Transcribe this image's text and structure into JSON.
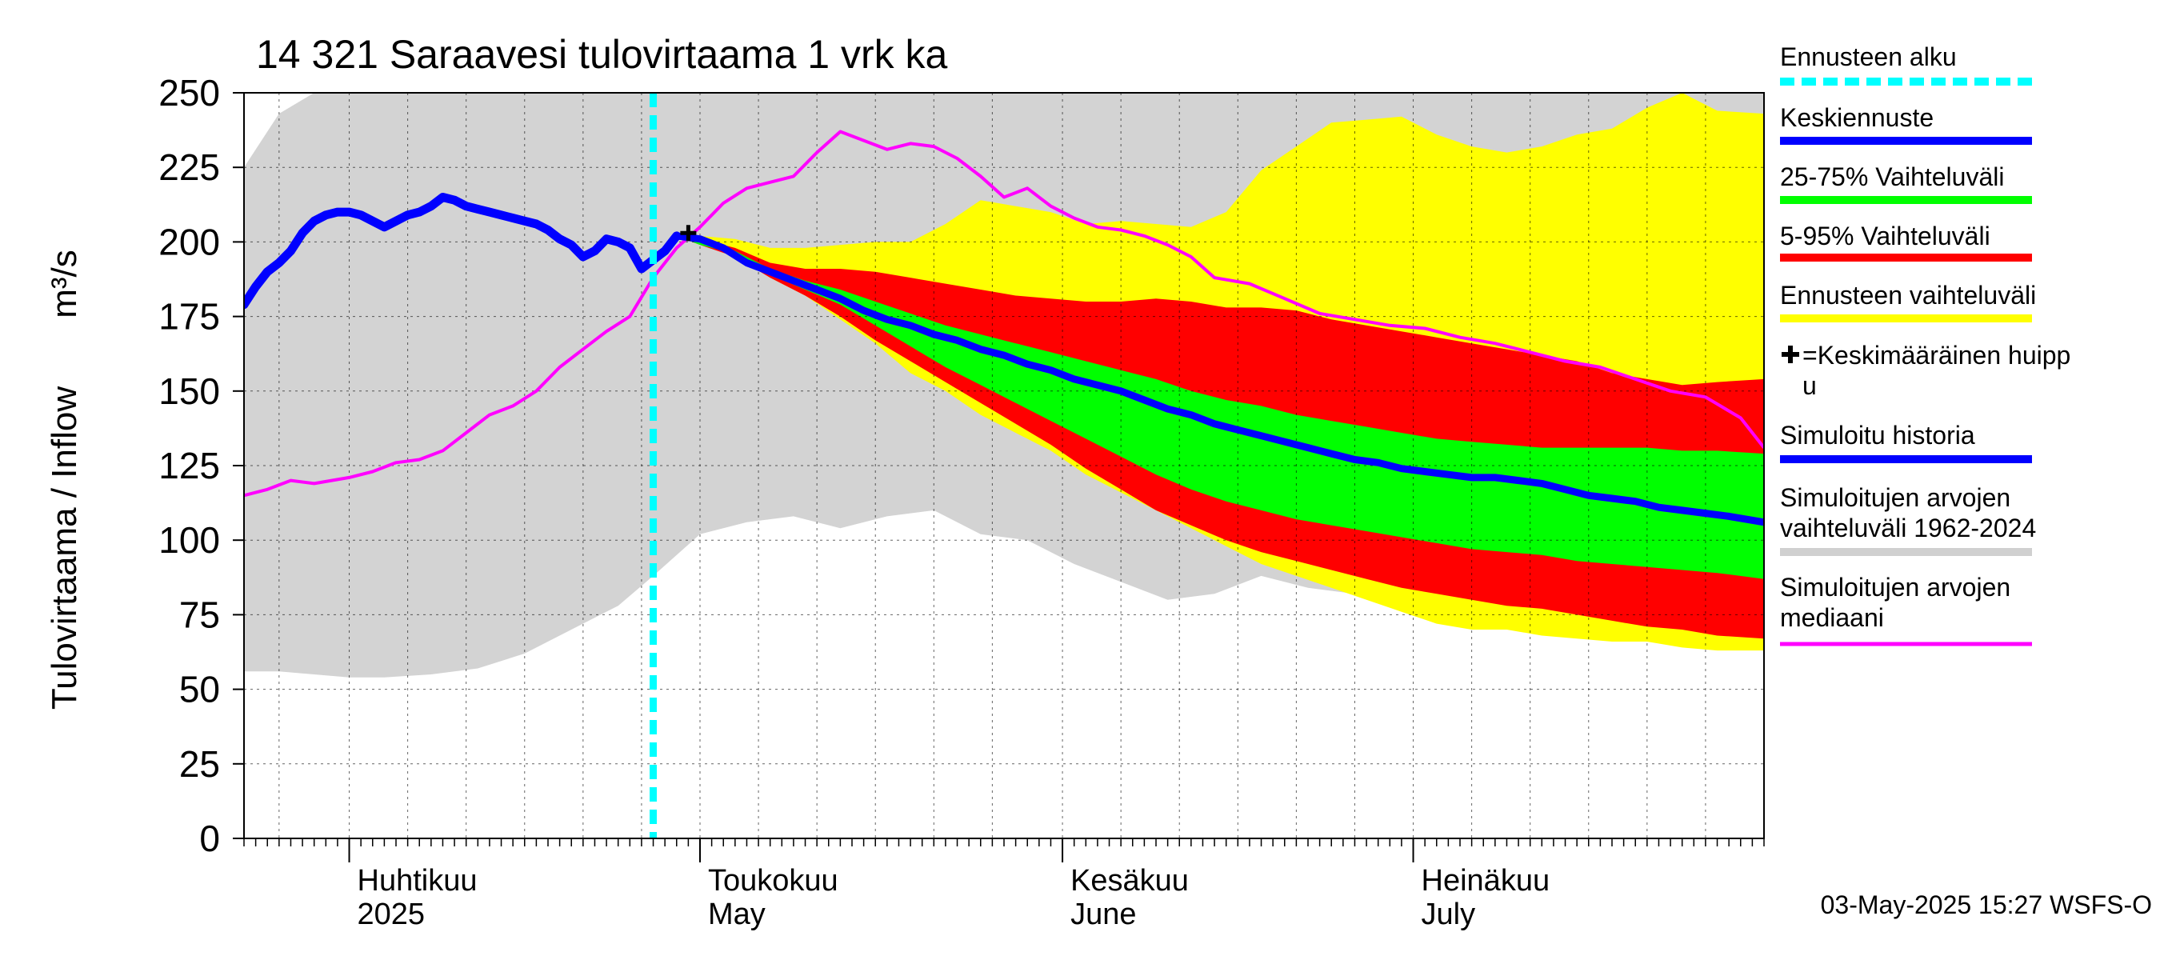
{
  "chart_data": {
    "type": "area",
    "title": "14 321 Saraavesi tulovirtaama 1 vrk ka",
    "ylabel_main": "Tulovirtaama / Inflow",
    "ylabel_unit": "m³/s",
    "ylim": [
      0,
      250
    ],
    "yticks": [
      "0",
      "25",
      "50",
      "75",
      "100",
      "125",
      "150",
      "175",
      "200",
      "225",
      "250"
    ],
    "x_start": "2025-03-23",
    "x_end": "2025-07-31",
    "forecast_start": "2025-04-27",
    "grid": true,
    "months": [
      {
        "fi": "Huhtikuu",
        "en": "2025",
        "date": "2025-04-01"
      },
      {
        "fi": "Toukokuu",
        "en": "May",
        "date": "2025-05-01"
      },
      {
        "fi": "Kesäkuu",
        "en": "June",
        "date": "2025-06-01"
      },
      {
        "fi": "Heinäkuu",
        "en": "July",
        "date": "2025-07-01"
      }
    ],
    "footer": "03-May-2025 15:27 WSFS-O",
    "legend": [
      {
        "label": "Ennusteen alku",
        "color": "#00ffff",
        "style": "dashed"
      },
      {
        "label": "Keskiennuste",
        "color": "#0000ff",
        "style": "solid"
      },
      {
        "label": "25-75% Vaihteluväli",
        "color": "#00ff00",
        "style": "solid"
      },
      {
        "label": "5-95% Vaihteluväli",
        "color": "#ff0000",
        "style": "solid"
      },
      {
        "label": "Ennusteen vaihteluväli",
        "color": "#ffff00",
        "style": "solid"
      },
      {
        "label": "✚=Keskimääräinen huipp u",
        "color": "#000000",
        "style": "marker",
        "lines": [
          "✚=Keskimääräinen huipp",
          "u"
        ]
      },
      {
        "label": "Simuloitu historia",
        "color": "#0000ff",
        "style": "solid"
      },
      {
        "label": "Simuloitujen arvojen vaihteluväli 1962-2024",
        "color": "#d0d0d0",
        "style": "solid",
        "lines": [
          "Simuloitujen arvojen",
          "vaihteluväli 1962-2024"
        ]
      },
      {
        "label": "Simuloitujen arvojen mediaani",
        "color": "#ff00ff",
        "style": "solid",
        "lines": [
          "Simuloitujen arvojen",
          "mediaani"
        ]
      }
    ],
    "series": {
      "hist_range": {
        "x": [
          "2025-03-23",
          "2025-03-26",
          "2025-03-29",
          "2025-04-01",
          "2025-04-04",
          "2025-04-08",
          "2025-04-12",
          "2025-04-16",
          "2025-04-20",
          "2025-04-24",
          "2025-04-27",
          "2025-05-01",
          "2025-05-05",
          "2025-05-09",
          "2025-05-13",
          "2025-05-17",
          "2025-05-21",
          "2025-05-25",
          "2025-05-29",
          "2025-06-02",
          "2025-06-06",
          "2025-06-10",
          "2025-06-14",
          "2025-06-18",
          "2025-06-22",
          "2025-06-26",
          "2025-06-30",
          "2025-07-04",
          "2025-07-08",
          "2025-07-12",
          "2025-07-16",
          "2025-07-20",
          "2025-07-24",
          "2025-07-28",
          "2025-07-31"
        ],
        "upper": [
          225,
          243,
          250,
          250,
          250,
          250,
          250,
          250,
          250,
          250,
          250,
          250,
          250,
          250,
          250,
          250,
          250,
          250,
          250,
          250,
          250,
          250,
          250,
          250,
          250,
          250,
          250,
          250,
          250,
          250,
          250,
          250,
          250,
          250,
          250
        ],
        "lower": [
          56,
          56,
          55,
          54,
          54,
          55,
          57,
          62,
          70,
          78,
          88,
          102,
          106,
          108,
          104,
          108,
          110,
          102,
          100,
          92,
          86,
          80,
          82,
          88,
          84,
          82,
          80,
          76,
          77,
          74,
          73,
          71,
          70,
          70,
          69
        ]
      },
      "forecast_range": {
        "x": [
          "2025-04-29",
          "2025-05-01",
          "2025-05-04",
          "2025-05-07",
          "2025-05-10",
          "2025-05-13",
          "2025-05-16",
          "2025-05-19",
          "2025-05-22",
          "2025-05-25",
          "2025-05-28",
          "2025-05-31",
          "2025-06-03",
          "2025-06-06",
          "2025-06-09",
          "2025-06-12",
          "2025-06-15",
          "2025-06-18",
          "2025-06-21",
          "2025-06-24",
          "2025-06-27",
          "2025-06-30",
          "2025-07-03",
          "2025-07-06",
          "2025-07-09",
          "2025-07-12",
          "2025-07-15",
          "2025-07-18",
          "2025-07-21",
          "2025-07-24",
          "2025-07-27",
          "2025-07-31"
        ],
        "upper": [
          202,
          202,
          201,
          198,
          198,
          199,
          200,
          200,
          206,
          214,
          212,
          210,
          206,
          207,
          206,
          205,
          210,
          224,
          232,
          240,
          241,
          242,
          236,
          232,
          230,
          232,
          236,
          238,
          245,
          250,
          244,
          243
        ],
        "lower": [
          202,
          200,
          196,
          188,
          182,
          174,
          166,
          156,
          150,
          142,
          136,
          130,
          122,
          116,
          110,
          104,
          98,
          92,
          88,
          84,
          80,
          76,
          72,
          70,
          70,
          68,
          67,
          66,
          66,
          64,
          63,
          63
        ]
      },
      "band_5_95": {
        "x": [
          "2025-04-29",
          "2025-05-01",
          "2025-05-04",
          "2025-05-07",
          "2025-05-10",
          "2025-05-13",
          "2025-05-16",
          "2025-05-19",
          "2025-05-22",
          "2025-05-25",
          "2025-05-28",
          "2025-05-31",
          "2025-06-03",
          "2025-06-06",
          "2025-06-09",
          "2025-06-12",
          "2025-06-15",
          "2025-06-18",
          "2025-06-21",
          "2025-06-24",
          "2025-06-27",
          "2025-06-30",
          "2025-07-03",
          "2025-07-06",
          "2025-07-09",
          "2025-07-12",
          "2025-07-15",
          "2025-07-18",
          "2025-07-21",
          "2025-07-24",
          "2025-07-27",
          "2025-07-31"
        ],
        "upper": [
          202,
          201,
          198,
          193,
          191,
          191,
          190,
          188,
          186,
          184,
          182,
          181,
          180,
          180,
          181,
          180,
          178,
          178,
          177,
          174,
          172,
          170,
          168,
          166,
          164,
          162,
          160,
          156,
          154,
          152,
          153,
          154
        ],
        "lower": [
          202,
          199,
          195,
          188,
          182,
          175,
          167,
          160,
          153,
          146,
          139,
          132,
          124,
          117,
          110,
          105,
          100,
          96,
          93,
          90,
          87,
          84,
          82,
          80,
          78,
          77,
          75,
          73,
          71,
          70,
          68,
          67
        ]
      },
      "band_25_75": {
        "x": [
          "2025-04-29",
          "2025-05-01",
          "2025-05-04",
          "2025-05-07",
          "2025-05-10",
          "2025-05-13",
          "2025-05-16",
          "2025-05-19",
          "2025-05-22",
          "2025-05-25",
          "2025-05-28",
          "2025-05-31",
          "2025-06-03",
          "2025-06-06",
          "2025-06-09",
          "2025-06-12",
          "2025-06-15",
          "2025-06-18",
          "2025-06-21",
          "2025-06-24",
          "2025-06-27",
          "2025-06-30",
          "2025-07-03",
          "2025-07-06",
          "2025-07-09",
          "2025-07-12",
          "2025-07-15",
          "2025-07-18",
          "2025-07-21",
          "2025-07-24",
          "2025-07-27",
          "2025-07-31"
        ],
        "upper": [
          202,
          201,
          197,
          191,
          187,
          184,
          180,
          176,
          172,
          169,
          166,
          163,
          160,
          157,
          154,
          150,
          147,
          145,
          142,
          140,
          138,
          136,
          134,
          133,
          132,
          131,
          131,
          131,
          131,
          130,
          130,
          129
        ],
        "lower": [
          202,
          199,
          196,
          189,
          184,
          179,
          172,
          165,
          158,
          152,
          146,
          140,
          134,
          128,
          122,
          117,
          113,
          110,
          107,
          105,
          103,
          101,
          99,
          97,
          96,
          95,
          93,
          92,
          91,
          90,
          89,
          87
        ]
      },
      "median_sim": {
        "x": [
          "2025-03-23",
          "2025-03-25",
          "2025-03-27",
          "2025-03-29",
          "2025-04-01",
          "2025-04-03",
          "2025-04-05",
          "2025-04-07",
          "2025-04-09",
          "2025-04-11",
          "2025-04-13",
          "2025-04-15",
          "2025-04-17",
          "2025-04-19",
          "2025-04-21",
          "2025-04-23",
          "2025-04-25",
          "2025-04-27",
          "2025-04-29",
          "2025-05-01",
          "2025-05-03",
          "2025-05-05",
          "2025-05-07",
          "2025-05-09",
          "2025-05-11",
          "2025-05-13",
          "2025-05-15",
          "2025-05-17",
          "2025-05-19",
          "2025-05-21",
          "2025-05-23",
          "2025-05-25",
          "2025-05-27",
          "2025-05-29",
          "2025-05-31",
          "2025-06-02",
          "2025-06-04",
          "2025-06-06",
          "2025-06-08",
          "2025-06-10",
          "2025-06-12",
          "2025-06-14",
          "2025-06-17",
          "2025-06-20",
          "2025-06-23",
          "2025-06-26",
          "2025-06-29",
          "2025-07-02",
          "2025-07-05",
          "2025-07-08",
          "2025-07-11",
          "2025-07-14",
          "2025-07-17",
          "2025-07-20",
          "2025-07-23",
          "2025-07-26",
          "2025-07-29",
          "2025-07-31"
        ],
        "y": [
          115,
          117,
          120,
          119,
          121,
          123,
          126,
          127,
          130,
          136,
          142,
          145,
          150,
          158,
          164,
          170,
          175,
          188,
          198,
          205,
          213,
          218,
          220,
          222,
          230,
          237,
          234,
          231,
          233,
          232,
          228,
          222,
          215,
          218,
          212,
          208,
          205,
          204,
          202,
          199,
          195,
          188,
          186,
          181,
          176,
          174,
          172,
          171,
          168,
          166,
          163,
          160,
          158,
          154,
          150,
          148,
          141,
          131
        ]
      },
      "simulated": {
        "x": [
          "2025-03-23",
          "2025-03-24",
          "2025-03-25",
          "2025-03-26",
          "2025-03-27",
          "2025-03-28",
          "2025-03-29",
          "2025-03-30",
          "2025-03-31",
          "2025-04-01",
          "2025-04-02",
          "2025-04-03",
          "2025-04-04",
          "2025-04-05",
          "2025-04-06",
          "2025-04-07",
          "2025-04-08",
          "2025-04-09",
          "2025-04-10",
          "2025-04-11",
          "2025-04-12",
          "2025-04-13",
          "2025-04-14",
          "2025-04-15",
          "2025-04-16",
          "2025-04-17",
          "2025-04-18",
          "2025-04-19",
          "2025-04-20",
          "2025-04-21",
          "2025-04-22",
          "2025-04-23",
          "2025-04-24",
          "2025-04-25",
          "2025-04-26",
          "2025-04-27",
          "2025-04-28",
          "2025-04-29"
        ],
        "y": [
          179,
          185,
          190,
          193,
          197,
          203,
          207,
          209,
          210,
          210,
          209,
          207,
          205,
          207,
          209,
          210,
          212,
          215,
          214,
          212,
          211,
          210,
          209,
          208,
          207,
          206,
          204,
          201,
          199,
          195,
          197,
          201,
          200,
          198,
          191,
          194,
          197,
          202
        ]
      },
      "mean_forecast": {
        "x": [
          "2025-04-29",
          "2025-05-01",
          "2025-05-03",
          "2025-05-05",
          "2025-05-07",
          "2025-05-09",
          "2025-05-11",
          "2025-05-13",
          "2025-05-15",
          "2025-05-17",
          "2025-05-19",
          "2025-05-21",
          "2025-05-23",
          "2025-05-25",
          "2025-05-27",
          "2025-05-29",
          "2025-05-31",
          "2025-06-02",
          "2025-06-04",
          "2025-06-06",
          "2025-06-08",
          "2025-06-10",
          "2025-06-12",
          "2025-06-14",
          "2025-06-16",
          "2025-06-18",
          "2025-06-20",
          "2025-06-22",
          "2025-06-24",
          "2025-06-26",
          "2025-06-28",
          "2025-06-30",
          "2025-07-02",
          "2025-07-04",
          "2025-07-06",
          "2025-07-08",
          "2025-07-10",
          "2025-07-12",
          "2025-07-14",
          "2025-07-16",
          "2025-07-18",
          "2025-07-20",
          "2025-07-22",
          "2025-07-24",
          "2025-07-26",
          "2025-07-28",
          "2025-07-31"
        ],
        "y": [
          202,
          201,
          198,
          193,
          190,
          187,
          184,
          181,
          177,
          174,
          172,
          169,
          167,
          164,
          162,
          159,
          157,
          154,
          152,
          150,
          147,
          144,
          142,
          139,
          137,
          135,
          133,
          131,
          129,
          127,
          126,
          124,
          123,
          122,
          121,
          121,
          120,
          119,
          117,
          115,
          114,
          113,
          111,
          110,
          109,
          108,
          106
        ]
      },
      "peak_marker": {
        "x": "2025-04-30",
        "y": 203
      }
    }
  }
}
